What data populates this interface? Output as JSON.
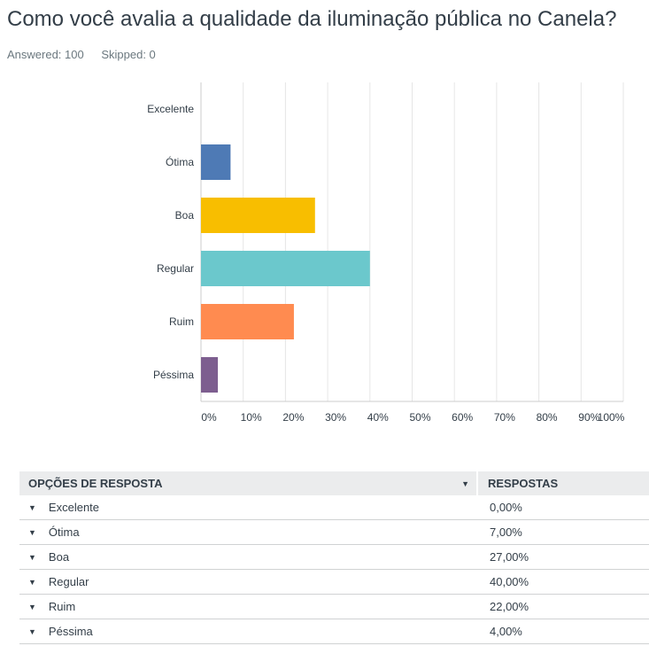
{
  "title": "Como você avalia a qualidade da iluminação pública no Canela?",
  "stats": {
    "answered": "Answered: 100",
    "skipped": "Skipped: 0"
  },
  "chart_data": {
    "type": "bar",
    "orientation": "horizontal",
    "categories": [
      "Excelente",
      "Ótima",
      "Boa",
      "Regular",
      "Ruim",
      "Péssima"
    ],
    "values": [
      0,
      7,
      27,
      40,
      22,
      4
    ],
    "colors": [
      "#4e7ab5",
      "#4e7ab5",
      "#f8be00",
      "#6bc8cc",
      "#ff8b50",
      "#7d5e8f"
    ],
    "xlim": [
      0,
      100
    ],
    "xticks": [
      "0%",
      "10%",
      "20%",
      "30%",
      "40%",
      "50%",
      "60%",
      "70%",
      "80%",
      "90%",
      "100%"
    ],
    "grid": true
  },
  "table": {
    "headers": [
      "OPÇÕES DE RESPOSTA",
      "RESPOSTAS"
    ],
    "rows": [
      {
        "label": "Excelente",
        "value": "0,00%"
      },
      {
        "label": "Ótima",
        "value": "7,00%"
      },
      {
        "label": "Boa",
        "value": "27,00%"
      },
      {
        "label": "Regular",
        "value": "40,00%"
      },
      {
        "label": "Ruim",
        "value": "22,00%"
      },
      {
        "label": "Péssima",
        "value": "4,00%"
      }
    ]
  }
}
